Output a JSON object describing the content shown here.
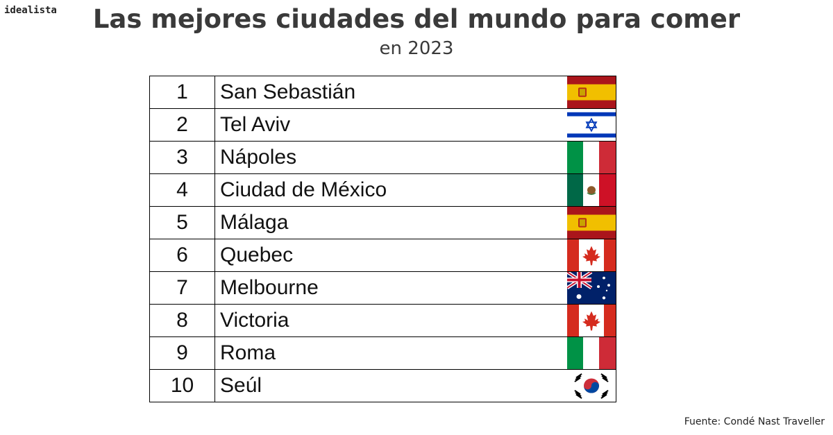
{
  "brand": "idealista",
  "title": "Las mejores ciudades del mundo para comer",
  "subtitle": "en 2023",
  "source": "Fuente: Condé Nast Traveller",
  "chart_data": {
    "type": "table",
    "columns": [
      "",
      ""
    ],
    "rows": [
      {
        "rank": "1",
        "city": "San Sebastián",
        "flag": "spain-flag-icon"
      },
      {
        "rank": "2",
        "city": "Tel Aviv",
        "flag": "israel-flag-icon"
      },
      {
        "rank": "3",
        "city": "Nápoles",
        "flag": "italy-flag-icon"
      },
      {
        "rank": "4",
        "city": "Ciudad de México",
        "flag": "mexico-flag-icon"
      },
      {
        "rank": "5",
        "city": "Málaga",
        "flag": "spain-flag-icon"
      },
      {
        "rank": "6",
        "city": "Quebec",
        "flag": "canada-flag-icon"
      },
      {
        "rank": "7",
        "city": "Melbourne",
        "flag": "australia-flag-icon"
      },
      {
        "rank": "8",
        "city": "Victoria",
        "flag": "canada-flag-icon"
      },
      {
        "rank": "9",
        "city": "Roma",
        "flag": "italy-flag-icon"
      },
      {
        "rank": "10",
        "city": "Seúl",
        "flag": "south-korea-flag-icon"
      }
    ]
  }
}
